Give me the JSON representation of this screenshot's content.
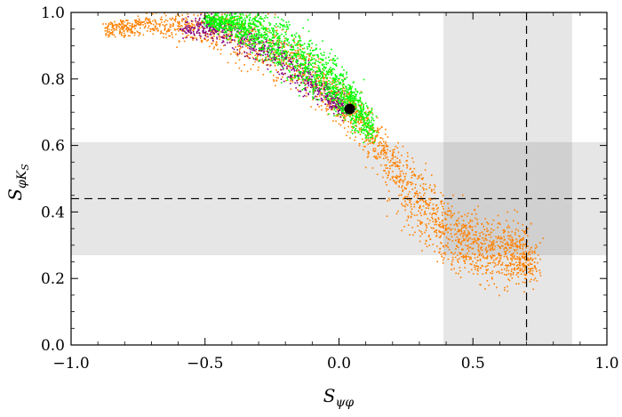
{
  "chart_data": {
    "type": "scatter",
    "xlabel": {
      "main": "S",
      "sub": "ψφ"
    },
    "ylabel": {
      "main": "S",
      "sub": "φK",
      "subsub": "S"
    },
    "xlim": [
      -1.0,
      1.0
    ],
    "ylim": [
      0.0,
      1.0
    ],
    "x_ticks": [
      "−1.0",
      "−0.5",
      "0.0",
      "0.5",
      "1.0"
    ],
    "x_tick_values": [
      -1.0,
      -0.5,
      0.0,
      0.5,
      1.0
    ],
    "y_ticks": [
      "0.0",
      "0.2",
      "0.4",
      "0.6",
      "0.8",
      "1.0"
    ],
    "y_tick_values": [
      0.0,
      0.2,
      0.4,
      0.6,
      0.8,
      1.0
    ],
    "grid": false,
    "bands": [
      {
        "orientation": "vertical",
        "from": 0.39,
        "to": 0.87,
        "color": "#e3e3e3"
      },
      {
        "orientation": "horizontal",
        "from": 0.27,
        "to": 0.61,
        "color": "#e3e3e3"
      }
    ],
    "reference_lines": [
      {
        "orientation": "vertical",
        "value": 0.7,
        "style": "dashed"
      },
      {
        "orientation": "horizontal",
        "value": 0.44,
        "style": "dashed"
      }
    ],
    "highlight_point": {
      "x": 0.04,
      "y": 0.71,
      "color": "#000000"
    },
    "series": [
      {
        "color": "#ff8000",
        "path": [
          [
            -0.87,
            0.95
          ],
          [
            -0.7,
            0.97
          ],
          [
            -0.5,
            0.96
          ],
          [
            -0.35,
            0.93
          ],
          [
            -0.2,
            0.87
          ],
          [
            -0.05,
            0.77
          ],
          [
            0.05,
            0.7
          ],
          [
            0.15,
            0.6
          ],
          [
            0.25,
            0.47
          ],
          [
            0.35,
            0.38
          ],
          [
            0.45,
            0.32
          ],
          [
            0.55,
            0.29
          ],
          [
            0.65,
            0.28
          ],
          [
            0.72,
            0.26
          ]
        ],
        "spread": [
          0.012,
          0.018,
          0.03,
          0.04,
          0.04,
          0.035,
          0.03,
          0.035,
          0.045,
          0.05,
          0.05,
          0.05,
          0.05,
          0.04
        ]
      },
      {
        "color": "#800080",
        "path": [
          [
            -0.58,
            0.96
          ],
          [
            -0.45,
            0.95
          ],
          [
            -0.3,
            0.9
          ],
          [
            -0.15,
            0.82
          ],
          [
            -0.05,
            0.76
          ],
          [
            0.02,
            0.71
          ]
        ],
        "spread": [
          0.015,
          0.02,
          0.025,
          0.025,
          0.02,
          0.015
        ]
      },
      {
        "color": "#00ff00",
        "path": [
          [
            -0.5,
            0.98
          ],
          [
            -0.4,
            0.97
          ],
          [
            -0.3,
            0.94
          ],
          [
            -0.2,
            0.9
          ],
          [
            -0.1,
            0.84
          ],
          [
            0.0,
            0.77
          ],
          [
            0.06,
            0.71
          ],
          [
            0.12,
            0.65
          ]
        ],
        "spread": [
          0.01,
          0.02,
          0.035,
          0.04,
          0.04,
          0.035,
          0.03,
          0.02
        ]
      }
    ]
  }
}
